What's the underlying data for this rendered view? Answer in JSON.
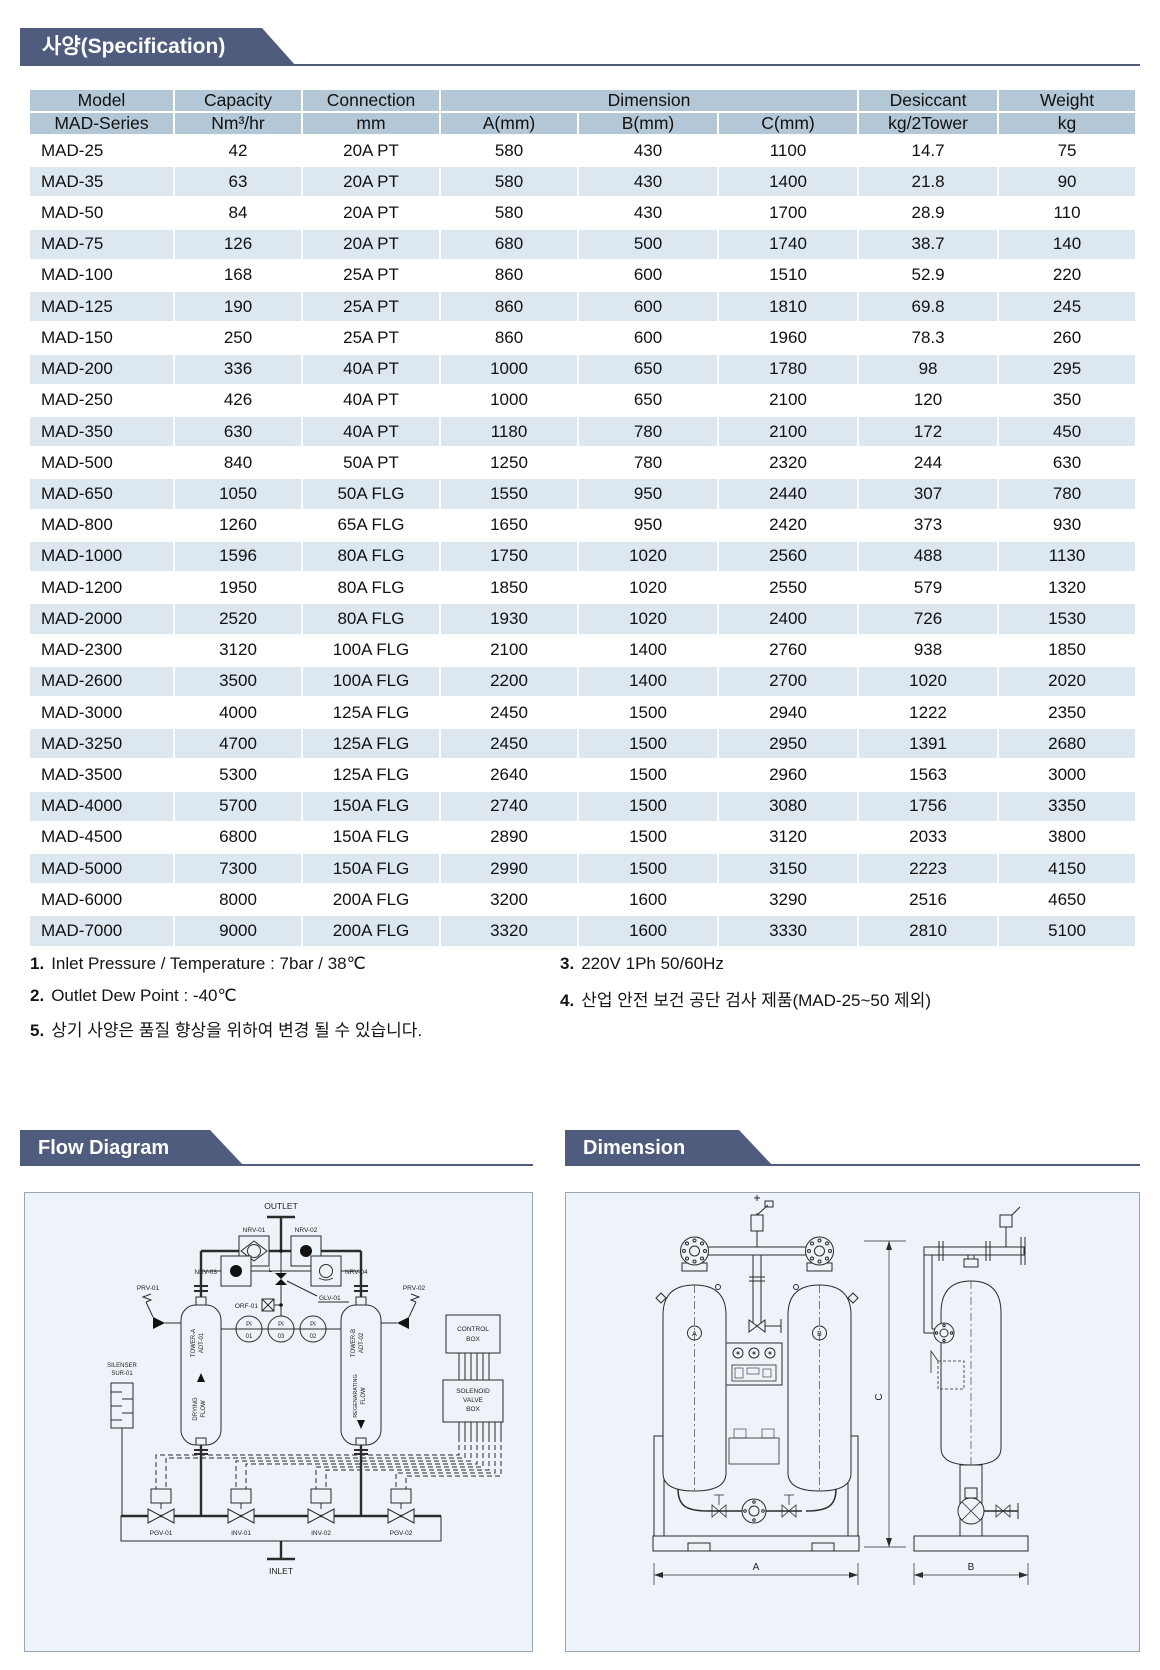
{
  "headers": {
    "spec": "사양(Specification)",
    "flow": "Flow Diagram",
    "dimension": "Dimension"
  },
  "table": {
    "header_row1": {
      "model": "Model",
      "capacity": "Capacity",
      "connection": "Connection",
      "dimension": "Dimension",
      "desiccant": "Desiccant",
      "weight": "Weight"
    },
    "header_row2": {
      "model": "MAD-Series",
      "capacity": "Nm³/hr",
      "connection": "mm",
      "a": "A(mm)",
      "b": "B(mm)",
      "c": "C(mm)",
      "desiccant": "kg/2Tower",
      "weight": "kg"
    },
    "rows": [
      [
        "MAD-25",
        "42",
        "20A PT",
        "580",
        "430",
        "1100",
        "14.7",
        "75"
      ],
      [
        "MAD-35",
        "63",
        "20A PT",
        "580",
        "430",
        "1400",
        "21.8",
        "90"
      ],
      [
        "MAD-50",
        "84",
        "20A PT",
        "580",
        "430",
        "1700",
        "28.9",
        "110"
      ],
      [
        "MAD-75",
        "126",
        "20A PT",
        "680",
        "500",
        "1740",
        "38.7",
        "140"
      ],
      [
        "MAD-100",
        "168",
        "25A PT",
        "860",
        "600",
        "1510",
        "52.9",
        "220"
      ],
      [
        "MAD-125",
        "190",
        "25A PT",
        "860",
        "600",
        "1810",
        "69.8",
        "245"
      ],
      [
        "MAD-150",
        "250",
        "25A PT",
        "860",
        "600",
        "1960",
        "78.3",
        "260"
      ],
      [
        "MAD-200",
        "336",
        "40A PT",
        "1000",
        "650",
        "1780",
        "98",
        "295"
      ],
      [
        "MAD-250",
        "426",
        "40A PT",
        "1000",
        "650",
        "2100",
        "120",
        "350"
      ],
      [
        "MAD-350",
        "630",
        "40A PT",
        "1180",
        "780",
        "2100",
        "172",
        "450"
      ],
      [
        "MAD-500",
        "840",
        "50A PT",
        "1250",
        "780",
        "2320",
        "244",
        "630"
      ],
      [
        "MAD-650",
        "1050",
        "50A FLG",
        "1550",
        "950",
        "2440",
        "307",
        "780"
      ],
      [
        "MAD-800",
        "1260",
        "65A FLG",
        "1650",
        "950",
        "2420",
        "373",
        "930"
      ],
      [
        "MAD-1000",
        "1596",
        "80A FLG",
        "1750",
        "1020",
        "2560",
        "488",
        "1130"
      ],
      [
        "MAD-1200",
        "1950",
        "80A FLG",
        "1850",
        "1020",
        "2550",
        "579",
        "1320"
      ],
      [
        "MAD-2000",
        "2520",
        "80A FLG",
        "1930",
        "1020",
        "2400",
        "726",
        "1530"
      ],
      [
        "MAD-2300",
        "3120",
        "100A FLG",
        "2100",
        "1400",
        "2760",
        "938",
        "1850"
      ],
      [
        "MAD-2600",
        "3500",
        "100A FLG",
        "2200",
        "1400",
        "2700",
        "1020",
        "2020"
      ],
      [
        "MAD-3000",
        "4000",
        "125A FLG",
        "2450",
        "1500",
        "2940",
        "1222",
        "2350"
      ],
      [
        "MAD-3250",
        "4700",
        "125A FLG",
        "2450",
        "1500",
        "2950",
        "1391",
        "2680"
      ],
      [
        "MAD-3500",
        "5300",
        "125A FLG",
        "2640",
        "1500",
        "2960",
        "1563",
        "3000"
      ],
      [
        "MAD-4000",
        "5700",
        "150A FLG",
        "2740",
        "1500",
        "3080",
        "1756",
        "3350"
      ],
      [
        "MAD-4500",
        "6800",
        "150A FLG",
        "2890",
        "1500",
        "3120",
        "2033",
        "3800"
      ],
      [
        "MAD-5000",
        "7300",
        "150A FLG",
        "2990",
        "1500",
        "3150",
        "2223",
        "4150"
      ],
      [
        "MAD-6000",
        "8000",
        "200A FLG",
        "3200",
        "1600",
        "3290",
        "2516",
        "4650"
      ],
      [
        "MAD-7000",
        "9000",
        "200A FLG",
        "3320",
        "1600",
        "3330",
        "2810",
        "5100"
      ]
    ]
  },
  "notes": {
    "n1": {
      "num": "1.",
      "text": "Inlet Pressure / Temperature : 7bar / 38℃"
    },
    "n2": {
      "num": "2.",
      "text": "Outlet Dew Point : -40℃"
    },
    "n3": {
      "num": "3.",
      "text": "220V 1Ph 50/60Hz"
    },
    "n4": {
      "num": "4.",
      "text": "산업 안전 보건 공단 검사 제품(MAD-25~50 제외)"
    },
    "n5": {
      "num": "5.",
      "text": "상기 사양은 품질 향상을 위하여 변경 될 수 있습니다."
    }
  },
  "flow_diagram": {
    "outlet": "OUTLET",
    "inlet": "INLET",
    "nrv01": "NRV-01",
    "nrv02": "NRV-02",
    "nrv03": "NRV-03",
    "nrv04": "NRV-04",
    "orf01": "ORF-01",
    "glv01": "GLV-01",
    "l": "L",
    "prv01": "PRV-01",
    "prv02": "PRV-02",
    "tower_a1": "TOWER-A",
    "tower_a2": "ADT-01",
    "tower_b1": "TOWER-B",
    "tower_b2": "ADT-02",
    "drying1": "DRYING",
    "drying2": "FLOW",
    "regen1": "REGENARATING",
    "regen2": "FLOW",
    "sil1": "SILENSER",
    "sil2": "SUR-01",
    "ctrl1": "CONTROL",
    "ctrl2": "BOX",
    "sol1": "SOLENOID",
    "sol2": "VALVE",
    "sol3": "BOX",
    "pgv01": "PGV-01",
    "inv01": "INV-01",
    "inv02": "INV-02",
    "pgv02": "PGV-02",
    "pi": "PI",
    "pi01": "01",
    "pi03": "03",
    "pi02": "02"
  },
  "dimension_diagram": {
    "dim_a": "A",
    "dim_b": "B",
    "dim_c": "C",
    "vessel_a": "A",
    "vessel_b": "B"
  },
  "colors": {
    "banner": "#4f5c7e",
    "table_header": "#b4c7d6",
    "row_stripe": "#dde7ef",
    "panel_bg": "#eef3f9"
  }
}
